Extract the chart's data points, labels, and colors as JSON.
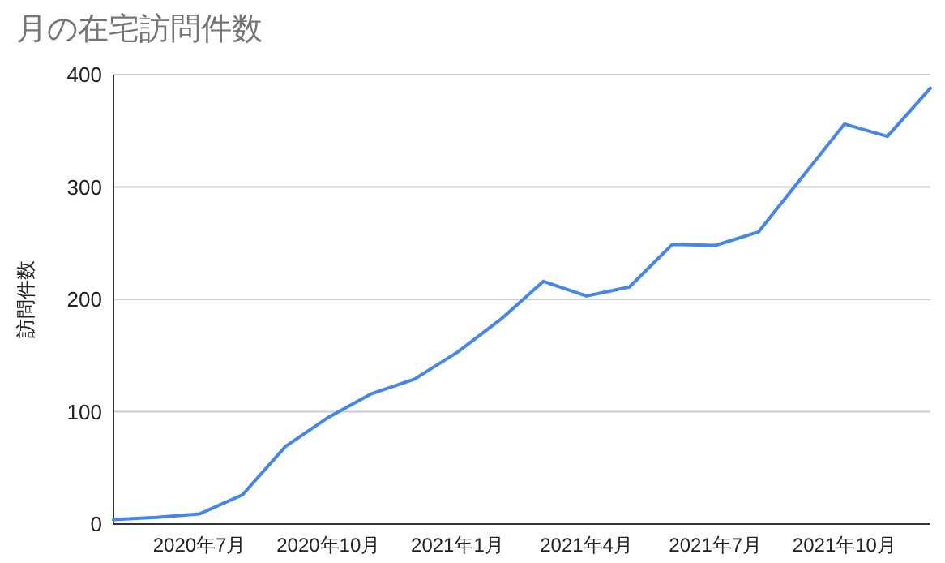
{
  "chart_data": {
    "type": "line",
    "title": "月の在宅訪問件数",
    "ylabel": "訪問件数",
    "x": [
      "2020-05",
      "2020-06",
      "2020-07",
      "2020-08",
      "2020-09",
      "2020-10",
      "2020-11",
      "2020-12",
      "2021-01",
      "2021-02",
      "2021-03",
      "2021-04",
      "2021-05",
      "2021-06",
      "2021-07",
      "2021-08",
      "2021-09",
      "2021-10",
      "2021-11",
      "2021-12"
    ],
    "series": [
      {
        "color": "#4285f4",
        "values": [
          4,
          6,
          9,
          26,
          69,
          95,
          116,
          129,
          153,
          182,
          216,
          203,
          211,
          249,
          248,
          260,
          308,
          356,
          345,
          388
        ]
      }
    ],
    "xlim": [
      "2020-05",
      "2021-12"
    ],
    "xticks": [
      {
        "value": "2020-07",
        "label": "2020年7月"
      },
      {
        "value": "2020-10",
        "label": "2020年10月"
      },
      {
        "value": "2021-01",
        "label": "2021年1月"
      },
      {
        "value": "2021-04",
        "label": "2021年4月"
      },
      {
        "value": "2021-07",
        "label": "2021年7月"
      },
      {
        "value": "2021-10",
        "label": "2021年10月"
      }
    ],
    "ylim": [
      0,
      400
    ],
    "yticks": [
      0,
      100,
      200,
      300,
      400
    ],
    "grid": "y",
    "marker": "none",
    "line_style": "solid"
  }
}
